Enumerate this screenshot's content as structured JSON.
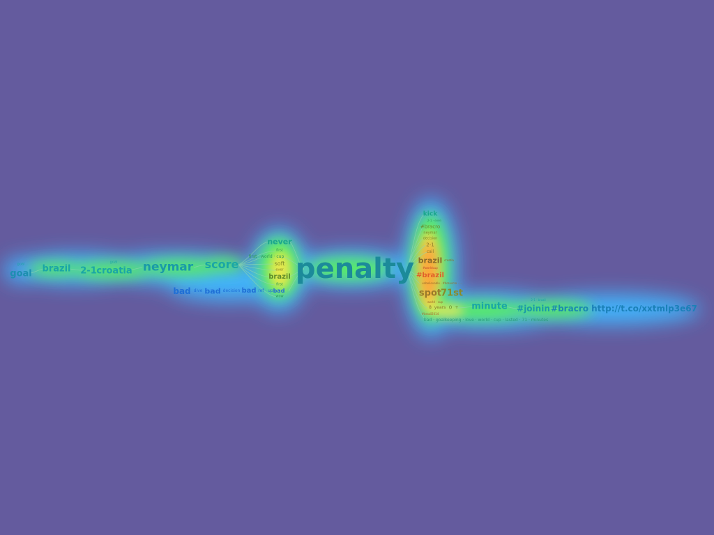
{
  "palette": {
    "background": "#645b9e",
    "heat_low": "#2ee6ff",
    "heat_mid": "#55ee55",
    "heat_high": "#ff9a33",
    "word_teal": "#1aa6a6",
    "word_blue": "#1f6fd6",
    "word_orange": "#f0702a"
  },
  "words": {
    "goal_small": "goal",
    "goal": "goal",
    "brazil_left": "brazil",
    "goal_mid": "goal",
    "score_2_1": "2-1",
    "croatia": "croatia",
    "neymar": "neymar",
    "score": "score",
    "never": "never",
    "first_a": "first",
    "first_world_cup": "first · world · cup",
    "soft": "soft",
    "ever": "ever",
    "brazil_center": "brazil",
    "first_b": "first",
    "wow": "wow",
    "bad_1": "bad",
    "dive": "dive",
    "bad_2": "bad",
    "decision": "decision",
    "bad_3": "bad",
    "ref_up": "ref · up",
    "bad_4": "bad",
    "penalty": "penalty",
    "kick": "kick",
    "r_2_1_small": "2-1 · even",
    "bracro_tag": "#bracro",
    "neymar_small": "neymar",
    "decision_small": "decision",
    "r_2_1": "2-1",
    "call": "call",
    "brazil_right": "brazil",
    "croatia_small": "croatia",
    "world_small": "#worldcup",
    "brazil_tag": "#brazil",
    "unbelievable": "unbelievable · #bravscro · ...",
    "spot": "spot",
    "first_71st": "71st",
    "world_cup_small": "world · cup",
    "eight": "8",
    "years": "years",
    "zero": "0",
    "plus": "+",
    "worldcup2014": "#brazil2014",
    "bad_goalkeeping": "bad · goalkeeping · love · world · cup · lasted · 71 · minutes",
    "minute": "minute",
    "r_2_1_dot": "2-1 · brazil",
    "joinin": "#joinin",
    "bracro": "#bracro",
    "url": "http://t.co/xxtmlp3e67"
  }
}
